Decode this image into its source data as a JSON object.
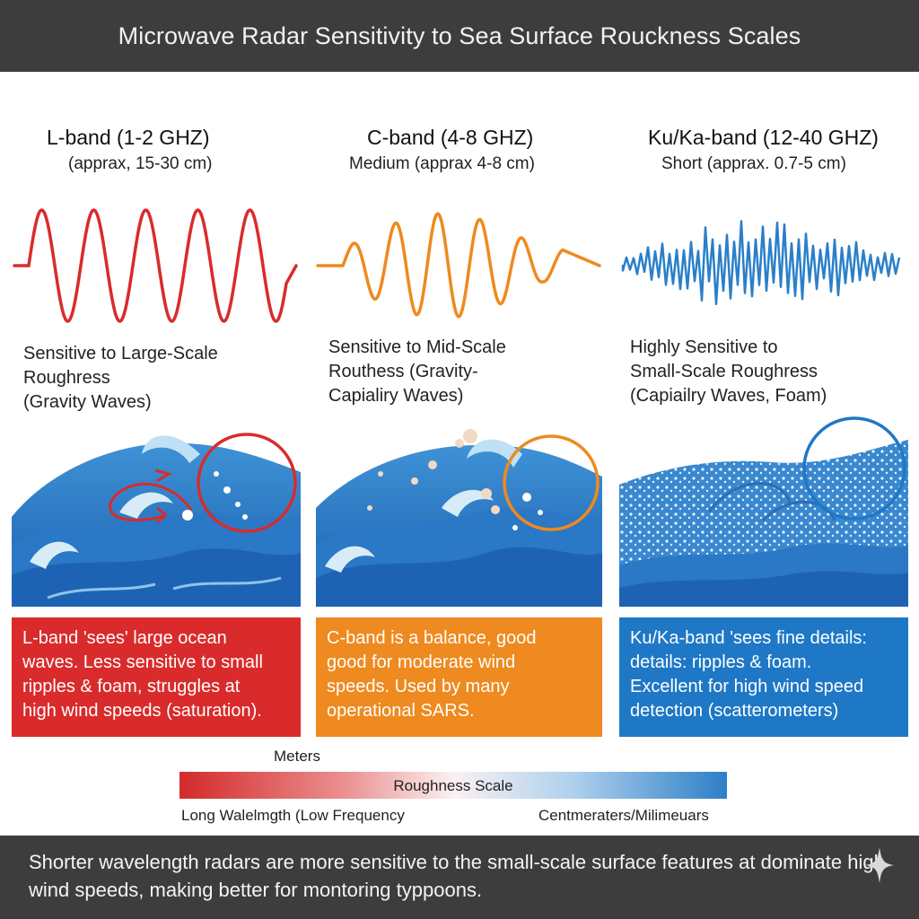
{
  "header": {
    "title": "Microwave Radar Sensitivity to Sea Surface Rouckness Scales"
  },
  "bands": [
    {
      "title": "L-band (1-2 GHZ)",
      "subtitle": "(apprax, 15-30 cm)",
      "sensitivity": "Sensitive to Large-Scale\nRoughress\n(Gravity Waves)",
      "description": "L-band 'sees' large ocean\nwaves. Less sensitive to small\nripples & foam, struggles at\nhigh wind speeds (saturation).",
      "color": "#d92b2b"
    },
    {
      "title": "C-band (4-8 GHZ)",
      "subtitle": "Medium (apprax 4-8 cm)",
      "sensitivity": "Sensitive to Mid-Scale\nRouthess (Gravity-\n Capialiry Waves)",
      "description": "C-band is a balance, good\ngood for moderate wind\nspeeds. Used by many\noperational SARS.",
      "color": "#ee8a1f"
    },
    {
      "title": "Ku/Ka-band (12-40 GHZ)",
      "subtitle": "Short    (apprax. 0.7-5 cm)",
      "sensitivity": "Highly Sensitive to\nSmall-Scale Roughress\n(Capiailry Waves, Foam)",
      "description": "Ku/Ka-band 'sees fine details:\ndetails: ripples & foam.\nExcellent for high wind speed\ndetection (scatterometers)",
      "color": "#1e78c6"
    }
  ],
  "scale": {
    "top_label": "Meters",
    "bar_label": "Roughness Scale",
    "left_label": "Long Walelmgth (Low Frequency",
    "right_label": "Centmeraters/Milimeuars"
  },
  "footer": {
    "text": "Shorter wavelength radars are more sensitive to the small-scale surface features at dominate high wind speeds, making better for montoring typpoons."
  }
}
